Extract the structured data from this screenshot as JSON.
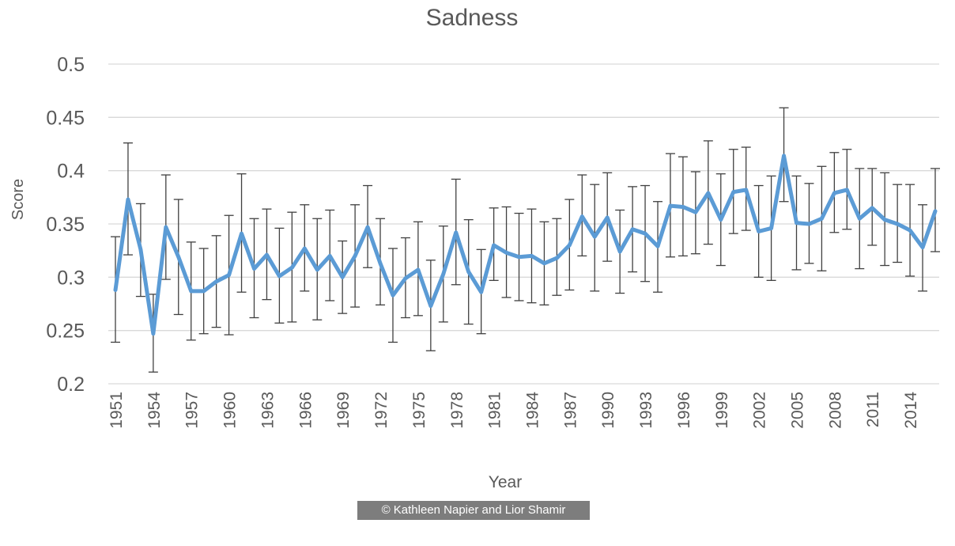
{
  "credit": "© Kathleen Napier and Lior Shamir",
  "colors": {
    "line": "#5b9bd5",
    "error_bar": "#404040",
    "grid": "#d9d9d9",
    "text": "#595959"
  },
  "chart_data": {
    "type": "line",
    "title": "Sadness",
    "xlabel": "Year",
    "ylabel": "Score",
    "ylim": [
      0.2,
      0.5
    ],
    "yticks": [
      0.2,
      0.25,
      0.3,
      0.35,
      0.4,
      0.45,
      0.5
    ],
    "ytick_labels": [
      "0.2",
      "0.25",
      "0.3",
      "0.35",
      "0.4",
      "0.45",
      "0.5"
    ],
    "xlim": [
      1951,
      2016
    ],
    "xtick_labels": [
      "1951",
      "1954",
      "1957",
      "1960",
      "1963",
      "1966",
      "1969",
      "1972",
      "1975",
      "1978",
      "1981",
      "1984",
      "1987",
      "1990",
      "1993",
      "1996",
      "1999",
      "2002",
      "2005",
      "2008",
      "2011",
      "2014"
    ],
    "grid": true,
    "legend": "none",
    "error_bars": true,
    "x": [
      1951,
      1952,
      1953,
      1954,
      1955,
      1956,
      1957,
      1958,
      1959,
      1960,
      1961,
      1962,
      1963,
      1964,
      1965,
      1966,
      1967,
      1968,
      1969,
      1970,
      1971,
      1972,
      1973,
      1974,
      1975,
      1976,
      1977,
      1978,
      1979,
      1980,
      1981,
      1982,
      1983,
      1984,
      1985,
      1986,
      1987,
      1988,
      1989,
      1990,
      1991,
      1992,
      1993,
      1994,
      1995,
      1996,
      1997,
      1998,
      1999,
      2000,
      2001,
      2002,
      2003,
      2004,
      2005,
      2006,
      2007,
      2008,
      2009,
      2010,
      2011,
      2012,
      2013,
      2014,
      2015,
      2016
    ],
    "y": [
      0.288,
      0.373,
      0.326,
      0.247,
      0.347,
      0.319,
      0.287,
      0.287,
      0.296,
      0.302,
      0.341,
      0.308,
      0.321,
      0.301,
      0.309,
      0.327,
      0.307,
      0.32,
      0.3,
      0.32,
      0.347,
      0.313,
      0.283,
      0.299,
      0.307,
      0.273,
      0.303,
      0.342,
      0.305,
      0.286,
      0.33,
      0.323,
      0.319,
      0.32,
      0.313,
      0.318,
      0.33,
      0.357,
      0.338,
      0.356,
      0.324,
      0.345,
      0.341,
      0.329,
      0.367,
      0.366,
      0.361,
      0.379,
      0.354,
      0.38,
      0.382,
      0.343,
      0.346,
      0.414,
      0.351,
      0.35,
      0.355,
      0.379,
      0.382,
      0.355,
      0.365,
      0.354,
      0.35,
      0.344,
      0.328,
      0.362
    ],
    "err_low": [
      0.239,
      0.321,
      0.282,
      0.211,
      0.298,
      0.265,
      0.241,
      0.247,
      0.253,
      0.246,
      0.286,
      0.262,
      0.279,
      0.257,
      0.258,
      0.287,
      0.26,
      0.278,
      0.266,
      0.272,
      0.309,
      0.274,
      0.239,
      0.262,
      0.264,
      0.231,
      0.258,
      0.293,
      0.256,
      0.247,
      0.297,
      0.281,
      0.278,
      0.276,
      0.274,
      0.283,
      0.288,
      0.32,
      0.287,
      0.315,
      0.285,
      0.305,
      0.296,
      0.286,
      0.319,
      0.32,
      0.322,
      0.331,
      0.311,
      0.341,
      0.344,
      0.3,
      0.297,
      0.371,
      0.307,
      0.313,
      0.306,
      0.342,
      0.345,
      0.308,
      0.33,
      0.311,
      0.314,
      0.301,
      0.287,
      0.324
    ],
    "err_high": [
      0.338,
      0.426,
      0.369,
      0.284,
      0.396,
      0.373,
      0.333,
      0.327,
      0.339,
      0.358,
      0.397,
      0.355,
      0.364,
      0.346,
      0.361,
      0.368,
      0.355,
      0.363,
      0.334,
      0.368,
      0.386,
      0.355,
      0.327,
      0.337,
      0.352,
      0.316,
      0.348,
      0.392,
      0.354,
      0.326,
      0.365,
      0.366,
      0.36,
      0.364,
      0.352,
      0.355,
      0.373,
      0.396,
      0.387,
      0.398,
      0.363,
      0.385,
      0.386,
      0.371,
      0.416,
      0.413,
      0.399,
      0.428,
      0.397,
      0.42,
      0.422,
      0.386,
      0.395,
      0.459,
      0.395,
      0.388,
      0.404,
      0.417,
      0.42,
      0.402,
      0.402,
      0.398,
      0.387,
      0.387,
      0.368,
      0.402
    ]
  }
}
